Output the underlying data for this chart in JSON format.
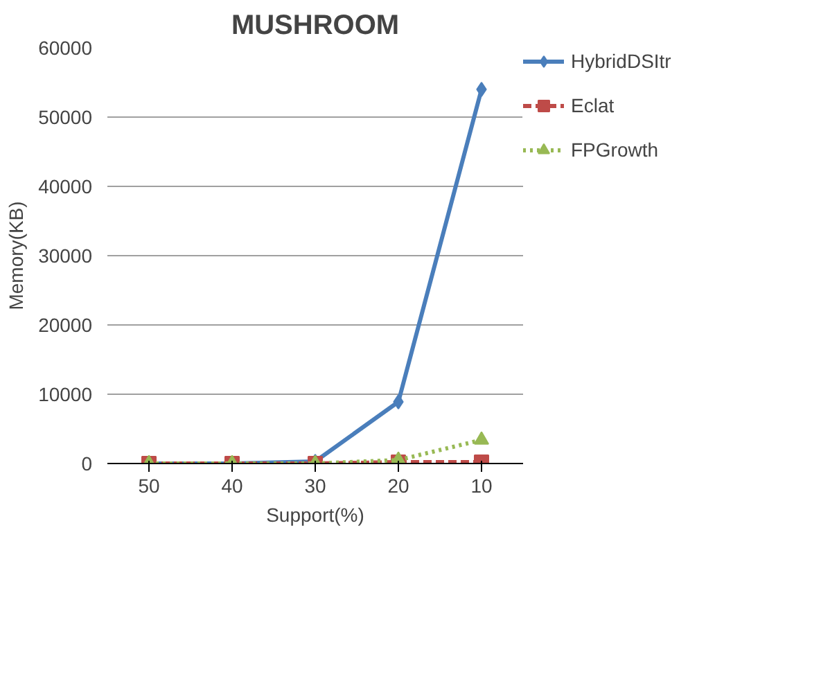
{
  "chart_data": {
    "type": "line",
    "title": "MUSHROOM",
    "ylabel": "Memory(KB)",
    "xlabel": "Support(%)",
    "categories": [
      "50",
      "40",
      "30",
      "20",
      "10"
    ],
    "series": [
      {
        "name": "HybridDSItr",
        "color": "#4a7ebb",
        "marker": "diamond",
        "line_style": "solid",
        "values": [
          0,
          0,
          300,
          8900,
          54000
        ]
      },
      {
        "name": "Eclat",
        "color": "#be4b48",
        "marker": "square",
        "line_style": "dashed",
        "values": [
          0,
          0,
          0,
          200,
          200
        ]
      },
      {
        "name": "FPGrowth",
        "color": "#98b954",
        "marker": "triangle",
        "line_style": "dotted",
        "values": [
          0,
          0,
          0,
          500,
          3400
        ]
      }
    ],
    "ylim": [
      0,
      60000
    ],
    "yticks": [
      0,
      10000,
      20000,
      30000,
      40000,
      50000,
      60000
    ],
    "grid": "y",
    "legend": "right"
  }
}
